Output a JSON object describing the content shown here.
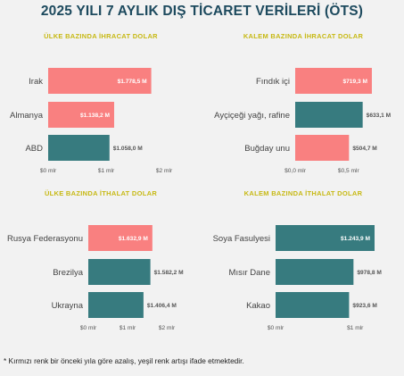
{
  "title": "2025 YILI 7 AYLIK DIŞ TİCARET VERİLERİ (ÖTS)",
  "footnote": "* Kırmızı renk bir önceki yıla göre azalış, yeşil renk artışı ifade etmektedir.",
  "colors": {
    "decrease": "#f98080",
    "increase": "#377b7f"
  },
  "chart_data": [
    {
      "type": "bar",
      "orientation": "horizontal",
      "title": "ÜLKE BAZINDA İHRACAT DOLAR",
      "categories": [
        "Irak",
        "Almanya",
        "ABD"
      ],
      "values": [
        1778.5,
        1138.2,
        1058.0
      ],
      "value_labels": [
        "$1.778,5 M",
        "$1.138,2 M",
        "$1.058,0 M"
      ],
      "trend": [
        "decrease",
        "decrease",
        "increase"
      ],
      "xlim": [
        0,
        2000
      ],
      "ticks": [
        0,
        1000,
        2000
      ],
      "tick_labels": [
        "$0 mlr",
        "$1 mlr",
        "$2 mlr"
      ]
    },
    {
      "type": "bar",
      "orientation": "horizontal",
      "title": "KALEM BAZINDA İHRACAT DOLAR",
      "categories": [
        "Fındık içi",
        "Ayçiçeği yağı, rafine",
        "Buğday unu"
      ],
      "values": [
        719.3,
        633.1,
        504.7
      ],
      "value_labels": [
        "$719,3 M",
        "$633,1 M",
        "$504,7 M"
      ],
      "trend": [
        "decrease",
        "increase",
        "decrease"
      ],
      "xlim": [
        0,
        820
      ],
      "ticks": [
        0,
        500
      ],
      "tick_labels": [
        "$0,0 mlr",
        "$0,5 mlr"
      ]
    },
    {
      "type": "bar",
      "orientation": "horizontal",
      "title": "ÜLKE BAZINDA İTHALAT DOLAR",
      "categories": [
        "Rusya Federasyonu",
        "Brezilya",
        "Ukrayna"
      ],
      "values": [
        1632.9,
        1582.2,
        1406.4
      ],
      "value_labels": [
        "$1.632,9 M",
        "$1.582,2 M",
        "$1.406,4 M"
      ],
      "trend": [
        "decrease",
        "increase",
        "increase"
      ],
      "xlim": [
        0,
        2000
      ],
      "ticks": [
        0,
        1000,
        2000
      ],
      "tick_labels": [
        "$0 mlr",
        "$1 mlr",
        "$2 mlr"
      ]
    },
    {
      "type": "bar",
      "orientation": "horizontal",
      "title": "KALEM BAZINDA İTHALAT DOLAR",
      "categories": [
        "Soya Fasulyesi",
        "Mısır Dane",
        "Kakao"
      ],
      "values": [
        1243.9,
        978.8,
        923.6
      ],
      "value_labels": [
        "$1.243,9 M",
        "$978,8 M",
        "$923,6 M"
      ],
      "trend": [
        "increase",
        "increase",
        "increase"
      ],
      "xlim": [
        0,
        1300
      ],
      "ticks": [
        0,
        1000
      ],
      "tick_labels": [
        "$0 mlr",
        "$1 mlr"
      ]
    }
  ]
}
